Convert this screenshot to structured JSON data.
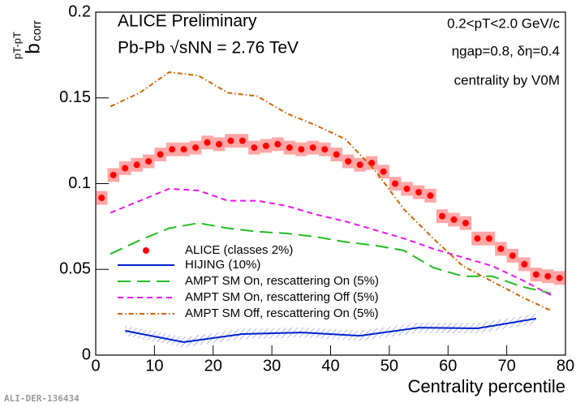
{
  "chart_data": {
    "type": "line",
    "annotations": [
      "ALICE Preliminary",
      "Pb-Pb √sNN = 2.76 TeV",
      "0.2<pT<2.0 GeV/c",
      "ηgap=0.8, δη=0.4",
      "centrality by V0M"
    ],
    "watermark": "ALI-DER-136434",
    "xlabel": "Centrality percentile",
    "ylabel": {
      "main": "b",
      "sub": "corr",
      "sup": "pT-pT"
    },
    "xlim": [
      0,
      80
    ],
    "xticks": [
      0,
      10,
      20,
      30,
      40,
      50,
      60,
      70,
      80
    ],
    "ylim": [
      0,
      0.2
    ],
    "yticks": [
      0,
      0.05,
      0.1,
      0.15,
      0.2
    ],
    "series": [
      {
        "name": "ALICE (classes 2%)",
        "color": "#ff0000",
        "style": "points",
        "x": [
          1,
          3,
          5,
          7,
          9,
          11,
          13,
          15,
          17,
          19,
          21,
          23,
          25,
          27,
          29,
          31,
          33,
          35,
          37,
          39,
          41,
          43,
          45,
          47,
          49,
          51,
          53,
          55,
          57,
          59,
          61,
          63,
          65,
          67,
          69,
          71,
          73,
          75,
          77,
          79
        ],
        "values": [
          0.0917,
          0.105,
          0.109,
          0.111,
          0.113,
          0.117,
          0.12,
          0.12,
          0.121,
          0.124,
          0.123,
          0.125,
          0.125,
          0.121,
          0.122,
          0.123,
          0.121,
          0.12,
          0.121,
          0.12,
          0.117,
          0.113,
          0.111,
          0.112,
          0.107,
          0.1,
          0.097,
          0.095,
          0.093,
          0.081,
          0.079,
          0.077,
          0.068,
          0.068,
          0.062,
          0.058,
          0.053,
          0.047,
          0.046,
          0.045
        ],
        "errors": [
          0.004,
          0.004,
          0.004,
          0.004,
          0.004,
          0.004,
          0.004,
          0.004,
          0.004,
          0.004,
          0.004,
          0.004,
          0.004,
          0.004,
          0.004,
          0.004,
          0.004,
          0.004,
          0.004,
          0.004,
          0.004,
          0.004,
          0.004,
          0.004,
          0.004,
          0.004,
          0.004,
          0.004,
          0.004,
          0.004,
          0.004,
          0.004,
          0.004,
          0.004,
          0.004,
          0.004,
          0.004,
          0.004,
          0.004,
          0.004
        ]
      },
      {
        "name": "HIJING (10%)",
        "color": "#0022cc",
        "style": "solid",
        "x": [
          5,
          15,
          25,
          35,
          45,
          55,
          65,
          75
        ],
        "values": [
          0.0142,
          0.0076,
          0.0123,
          0.0132,
          0.0113,
          0.016,
          0.0156,
          0.0213
        ],
        "errors": [
          0.003,
          0.003,
          0.003,
          0.003,
          0.003,
          0.003,
          0.003,
          0.003
        ]
      },
      {
        "name": "AMPT SM On, rescattering On (5%)",
        "color": "#22bb22",
        "style": "longdash",
        "x": [
          2.5,
          7.5,
          12.5,
          17.5,
          22.5,
          27.5,
          32.5,
          37.5,
          42.5,
          47.5,
          52.5,
          57.5,
          62.5,
          67.5,
          72.5,
          77.5
        ],
        "values": [
          0.059,
          0.067,
          0.074,
          0.077,
          0.074,
          0.072,
          0.071,
          0.069,
          0.066,
          0.064,
          0.061,
          0.051,
          0.046,
          0.046,
          0.04,
          0.036
        ]
      },
      {
        "name": "AMPT SM On, rescattering Off (5%)",
        "color": "#ee11ee",
        "style": "dash",
        "x": [
          2.5,
          7.5,
          12.5,
          17.5,
          22.5,
          27.5,
          32.5,
          37.5,
          42.5,
          47.5,
          52.5,
          57.5,
          62.5,
          67.5,
          72.5,
          77.5
        ],
        "values": [
          0.083,
          0.09,
          0.097,
          0.096,
          0.09,
          0.09,
          0.087,
          0.082,
          0.078,
          0.073,
          0.068,
          0.062,
          0.057,
          0.052,
          0.044,
          0.035
        ]
      },
      {
        "name": "AMPT SM Off, rescattering On (5%)",
        "color": "#cc6600",
        "style": "dashdot",
        "x": [
          2.5,
          7.5,
          12.5,
          17.5,
          22.5,
          27.5,
          32.5,
          37.5,
          42.5,
          47.5,
          52.5,
          57.5,
          62.5,
          67.5,
          72.5,
          77.5
        ],
        "values": [
          0.145,
          0.153,
          0.165,
          0.163,
          0.153,
          0.151,
          0.141,
          0.134,
          0.126,
          0.108,
          0.085,
          0.068,
          0.052,
          0.043,
          0.034,
          0.026
        ]
      }
    ]
  }
}
